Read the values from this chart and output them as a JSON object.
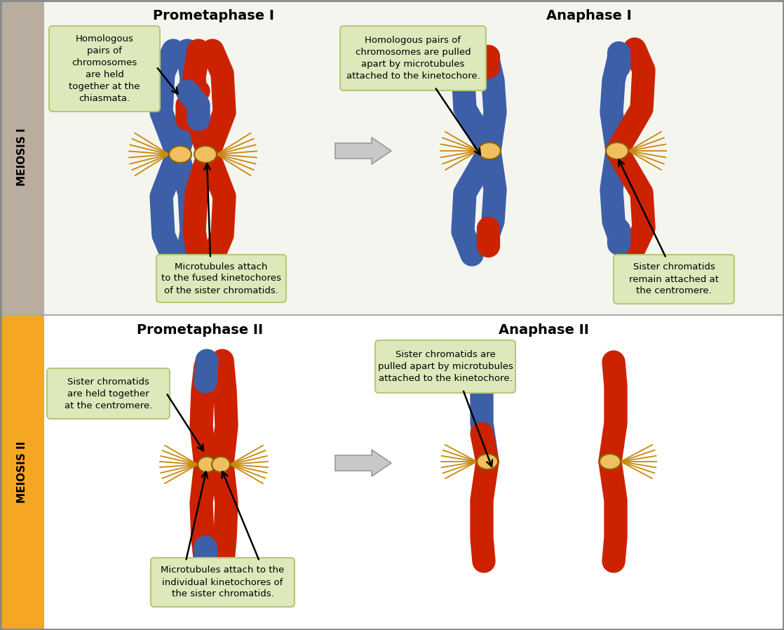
{
  "bg_top": "#f5f5f0",
  "bg_bot": "#ffffff",
  "sidebar1_color": "#b8ad9e",
  "sidebar2_color": "#f5a623",
  "ann_fc": "#dde8bb",
  "ann_ec": "#b8c878",
  "blue": "#3d5fa8",
  "red": "#cc2200",
  "centromere": "#f0c060",
  "microtubule": "#c8880a",
  "labels": {
    "meiosis1": "MEIOSIS I",
    "meiosis2": "MEIOSIS II",
    "title1a": "Prometaphase I",
    "title1b": "Anaphase I",
    "title2a": "Prometaphase II",
    "title2b": "Anaphase II",
    "note1a": "Homologous\npairs of\nchromosomes\nare held\ntogether at the\nchiasmata.",
    "note1b": "Homologous pairs of\nchromosomes are pulled\napart by microtubules\nattached to the kinetochore.",
    "note1c": "Microtubules attach\nto the fused kinetochores\nof the sister chromatids.",
    "note1d": "Sister chromatids\nremain attached at\nthe centromere.",
    "note2a": "Sister chromatids\nare held together\nat the centromere.",
    "note2b": "Sister chromatids are\npulled apart by microtubules\nattached to the kinetochore.",
    "note2c": "Microtubules attach to the\nindividual kinetochores of\nthe sister chromatids."
  }
}
